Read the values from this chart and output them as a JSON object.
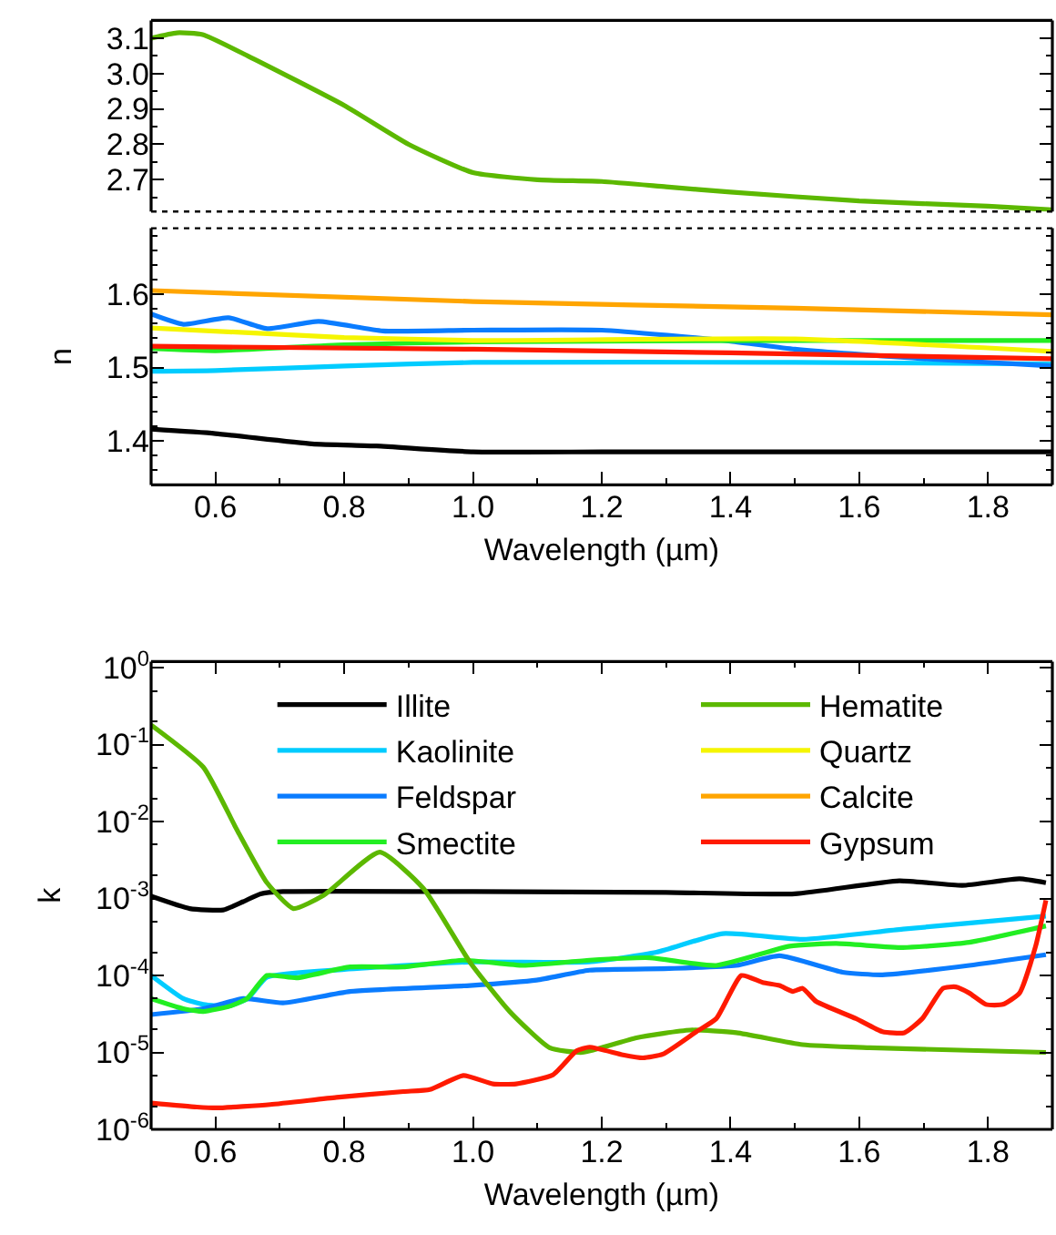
{
  "chart_data": [
    {
      "type": "line",
      "xlim": [
        0.5,
        1.9
      ],
      "ylim": [
        2.61,
        3.15
      ],
      "yticks": [
        2.7,
        2.8,
        2.9,
        {
          "value": 3.0,
          "label": "3.0"
        },
        3.1
      ],
      "tick_labels": "y",
      "series": [
        {
          "color": "#5cb800",
          "x": [
            0.5,
            0.54,
            0.58,
            0.65,
            0.8,
            0.9,
            1.0,
            1.1,
            1.2,
            1.3,
            1.4,
            1.6,
            1.8,
            1.9
          ],
          "values": [
            3.1,
            3.115,
            3.11,
            3.05,
            2.91,
            2.8,
            2.72,
            2.7,
            2.695,
            2.68,
            2.665,
            2.64,
            2.625,
            2.615
          ]
        }
      ]
    },
    {
      "type": "line",
      "xlabel": "Wavelength (µm)",
      "ylabel": "n",
      "xlim": [
        0.5,
        1.9
      ],
      "xticks": [
        0.6,
        0.8,
        {
          "value": 1.0,
          "label": "1.0"
        },
        1.2,
        1.4,
        1.6,
        1.8
      ],
      "ylim": [
        1.34,
        1.69
      ],
      "yticks": [
        1.4,
        1.5,
        1.6
      ],
      "series": [
        {
          "color": "#000000",
          "x": [
            0.5,
            0.6,
            0.75,
            0.85,
            1.0,
            1.2,
            1.5,
            1.9
          ],
          "values": [
            1.416,
            1.41,
            1.396,
            1.393,
            1.385,
            1.385,
            1.385,
            1.385
          ]
        },
        {
          "color": "#00ccff",
          "x": [
            0.5,
            0.6,
            0.8,
            1.0,
            1.5,
            1.9
          ],
          "values": [
            1.495,
            1.496,
            1.502,
            1.507,
            1.507,
            1.505
          ]
        },
        {
          "color": "#0a7cff",
          "x": [
            0.5,
            0.55,
            0.62,
            0.68,
            0.76,
            0.86,
            1.0,
            1.2,
            1.4,
            1.5,
            1.7,
            1.9
          ],
          "values": [
            1.573,
            1.559,
            1.568,
            1.553,
            1.563,
            1.55,
            1.551,
            1.551,
            1.536,
            1.525,
            1.512,
            1.502
          ]
        },
        {
          "color": "#22ee22",
          "x": [
            0.5,
            0.6,
            0.8,
            1.0,
            1.5,
            1.9
          ],
          "values": [
            1.526,
            1.523,
            1.531,
            1.535,
            1.537,
            1.537
          ]
        },
        {
          "color": "#f5f500",
          "x": [
            0.5,
            0.8,
            1.0,
            1.5,
            1.9
          ],
          "values": [
            1.554,
            1.541,
            1.537,
            1.539,
            1.522
          ]
        },
        {
          "color": "#ffa500",
          "x": [
            0.5,
            1.0,
            1.5,
            1.9
          ],
          "values": [
            1.605,
            1.59,
            1.581,
            1.572
          ]
        },
        {
          "color": "#ff1a00",
          "x": [
            0.5,
            1.0,
            1.4,
            1.9
          ],
          "values": [
            1.529,
            1.525,
            1.52,
            1.512
          ]
        }
      ]
    },
    {
      "type": "line",
      "xlabel": "Wavelength (µm)",
      "ylabel": "k",
      "log": "y",
      "legend": "top",
      "xlim": [
        0.5,
        1.9
      ],
      "xticks": [
        0.6,
        0.8,
        {
          "value": 1.0,
          "label": "1.0"
        },
        1.2,
        1.4,
        1.6,
        1.8
      ],
      "ylim": [
        1e-06,
        1.2
      ],
      "yticks": [
        {
          "value": 1e-06,
          "label": "10$^{-6}$"
        },
        {
          "value": 1e-05,
          "label": "10$^{-5}$"
        },
        {
          "value": 0.0001,
          "label": "10$^{-4}$"
        },
        {
          "value": 0.001,
          "label": "10$^{-3}$"
        },
        {
          "value": 0.01,
          "label": "10$^{-2}$"
        },
        {
          "value": 0.1,
          "label": "10$^{-1}$"
        },
        {
          "value": 1,
          "label": "10$^{0}$"
        }
      ],
      "series": [
        {
          "name": "Illite",
          "color": "#000000",
          "x": [
            0.5,
            0.56,
            0.612,
            0.643,
            0.67,
            0.705,
            1.0,
            1.3,
            1.5,
            1.662,
            1.76,
            1.849,
            1.89
          ],
          "values": [
            0.00107,
            0.00074,
            0.00071,
            0.00091,
            0.00115,
            0.00123,
            0.00123,
            0.0012,
            0.00115,
            0.0017,
            0.00148,
            0.0018,
            0.0016
          ]
        },
        {
          "name": "Kaolinite",
          "color": "#00ccff",
          "x": [
            0.5,
            0.55,
            0.581,
            0.62,
            0.65,
            0.68,
            0.8,
            1.0,
            1.18,
            1.285,
            1.388,
            1.512,
            1.668,
            1.89
          ],
          "values": [
            0.0001,
            5e-05,
            4.2e-05,
            4e-05,
            5e-05,
            9.5e-05,
            0.00012,
            0.00015,
            0.00015,
            0.0002,
            0.00035,
            0.000295,
            0.0004,
            0.00059
          ]
        },
        {
          "name": "Feldspar",
          "color": "#0a7cff",
          "x": [
            0.5,
            0.581,
            0.643,
            0.705,
            0.809,
            0.995,
            1.099,
            1.181,
            1.305,
            1.409,
            1.476,
            1.574,
            1.636,
            1.771,
            1.89
          ],
          "values": [
            3.1e-05,
            3.7e-05,
            5e-05,
            4.4e-05,
            6.2e-05,
            7.4e-05,
            8.7e-05,
            0.000117,
            0.000123,
            0.000135,
            0.00018,
            0.00011,
            0.000102,
            0.000135,
            0.000186
          ]
        },
        {
          "name": "Smectite",
          "color": "#22ee22",
          "x": [
            0.5,
            0.55,
            0.581,
            0.623,
            0.649,
            0.68,
            0.726,
            0.809,
            0.892,
            0.985,
            1.078,
            1.181,
            1.274,
            1.378,
            1.492,
            1.564,
            1.668,
            1.771,
            1.89
          ],
          "values": [
            5e-05,
            3.7e-05,
            3.4e-05,
            4e-05,
            5e-05,
            0.0001,
            9.3e-05,
            0.000129,
            0.000129,
            0.000158,
            0.000135,
            0.000158,
            0.00017,
            0.000135,
            0.00024,
            0.00026,
            0.00023,
            0.00027,
            0.00044
          ]
        },
        {
          "name": "Hematite",
          "color": "#5cb800",
          "x": [
            0.5,
            0.581,
            0.633,
            0.68,
            0.721,
            0.768,
            0.855,
            0.923,
            0.995,
            1.057,
            1.119,
            1.17,
            1.254,
            1.337,
            1.409,
            1.512,
            1.616,
            1.89
          ],
          "values": [
            0.18,
            0.051,
            0.0079,
            0.0016,
            0.00074,
            0.0011,
            0.004,
            0.00135,
            0.00015,
            3.4e-05,
            1.15e-05,
            1e-05,
            1.55e-05,
            1.95e-05,
            1.8e-05,
            1.26e-05,
            1.15e-05,
            1e-05
          ]
        },
        {
          "name": "Quartz",
          "color": "#f5f500"
        },
        {
          "name": "Calcite",
          "color": "#ffa500"
        },
        {
          "name": "Gypsum",
          "color": "#ff1a00",
          "x": [
            0.5,
            0.571,
            0.602,
            0.685,
            0.788,
            0.892,
            0.933,
            0.985,
            1.031,
            1.067,
            1.124,
            1.161,
            1.181,
            1.233,
            1.264,
            1.295,
            1.347,
            1.378,
            1.417,
            1.45,
            1.476,
            1.497,
            1.512,
            1.533,
            1.595,
            1.636,
            1.67,
            1.698,
            1.73,
            1.75,
            1.771,
            1.797,
            1.823,
            1.849,
            1.874,
            1.89
          ],
          "values": [
            2.2e-06,
            1.95e-06,
            1.9e-06,
            2.1e-06,
            2.6e-06,
            3.1e-06,
            3.3e-06,
            5e-06,
            3.9e-06,
            3.9e-06,
            5.1e-06,
            1.05e-05,
            1.17e-05,
            9.3e-06,
            8.5e-06,
            9.5e-06,
            1.86e-05,
            2.75e-05,
            0.0001,
            8.1e-05,
            7.4e-05,
            6.2e-05,
            6.8e-05,
            4.6e-05,
            2.75e-05,
            1.86e-05,
            1.8e-05,
            2.75e-05,
            6.8e-05,
            7.1e-05,
            5.9e-05,
            4.2e-05,
            4.2e-05,
            5.9e-05,
            0.00024,
            0.00095
          ]
        }
      ]
    }
  ]
}
